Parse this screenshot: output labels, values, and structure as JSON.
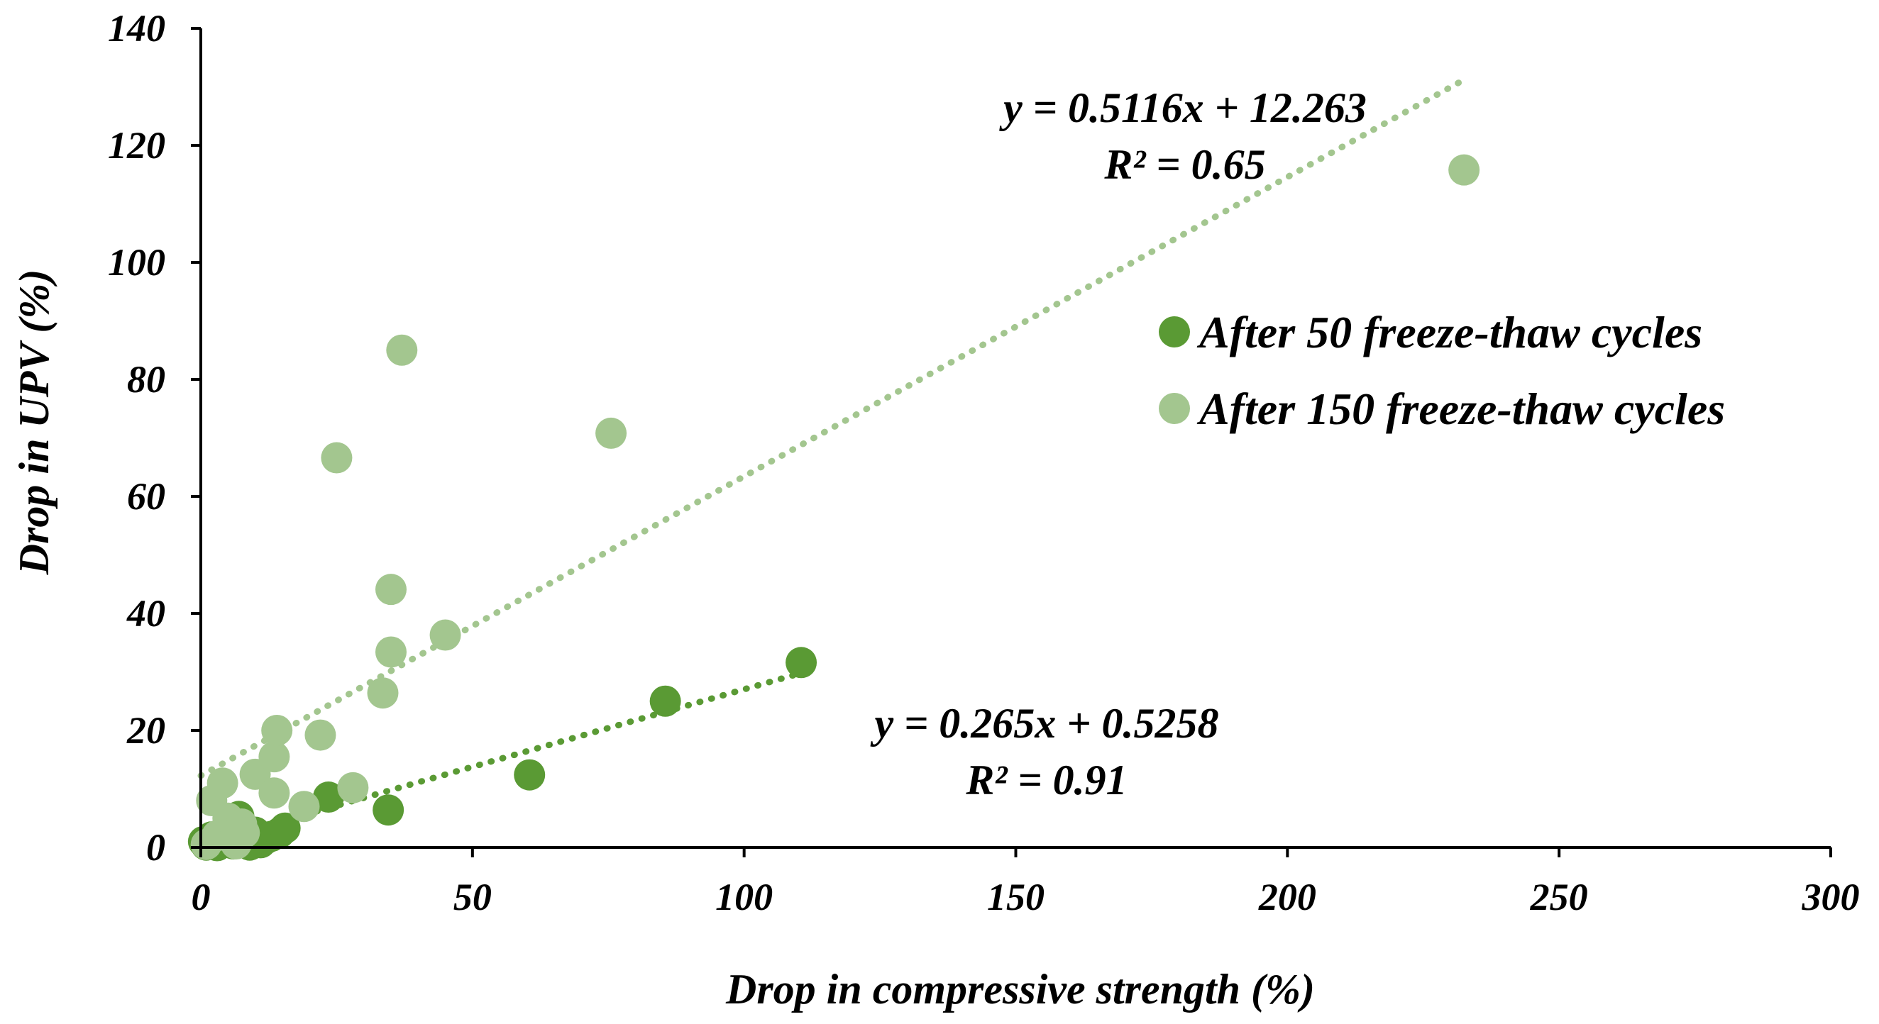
{
  "chart_data": {
    "type": "scatter",
    "title": "",
    "xlabel": "Drop in compressive strength (%)",
    "ylabel": "Drop in UPV (%)",
    "xlim": [
      0,
      300
    ],
    "ylim": [
      0,
      140
    ],
    "xticks": [
      0,
      50,
      100,
      150,
      200,
      250,
      300
    ],
    "yticks": [
      0,
      20,
      40,
      60,
      80,
      100,
      120,
      140
    ],
    "grid": false,
    "legend_position": "right",
    "series": [
      {
        "name": "After 50 freeze-thaw cycles",
        "color": "#5a9a34",
        "trendline": {
          "slope": 0.265,
          "intercept": 0.5258,
          "x_range": [
            0,
            110.5
          ],
          "equation": "y = 0.265x + 0.5258",
          "r2": "R² = 0.91"
        },
        "points": [
          [
            0.5,
            1.0
          ],
          [
            1.0,
            0.4
          ],
          [
            2.0,
            1.8
          ],
          [
            3.0,
            0.3
          ],
          [
            4.0,
            0.8
          ],
          [
            5.0,
            3.0
          ],
          [
            6.0,
            0.6
          ],
          [
            7.0,
            5.3
          ],
          [
            8.0,
            1.4
          ],
          [
            9.0,
            0.4
          ],
          [
            10.0,
            2.6
          ],
          [
            11.0,
            0.8
          ],
          [
            12.0,
            1.5
          ],
          [
            13.0,
            1.9
          ],
          [
            14.5,
            2.5
          ],
          [
            15.5,
            3.3
          ],
          [
            23.5,
            8.6
          ],
          [
            34.5,
            6.4
          ],
          [
            60.5,
            12.4
          ],
          [
            85.5,
            25.0
          ],
          [
            110.5,
            31.6
          ]
        ]
      },
      {
        "name": "After 150 freeze-thaw cycles",
        "color": "#a3c68f",
        "trendline": {
          "slope": 0.5116,
          "intercept": 12.263,
          "x_range": [
            0,
            232.5
          ],
          "equation": "y = 0.5116x + 12.263",
          "r2": "R² = 0.65"
        },
        "points": [
          [
            1.0,
            0.5
          ],
          [
            2.0,
            8.0
          ],
          [
            3.0,
            2.0
          ],
          [
            4.0,
            11.0
          ],
          [
            5.0,
            5.0
          ],
          [
            6.5,
            0.6
          ],
          [
            7.5,
            4.0
          ],
          [
            8.0,
            2.5
          ],
          [
            10.0,
            12.5
          ],
          [
            13.5,
            9.3
          ],
          [
            13.5,
            15.5
          ],
          [
            14.0,
            20.0
          ],
          [
            19.0,
            7.0
          ],
          [
            22.0,
            19.2
          ],
          [
            25.0,
            66.6
          ],
          [
            28.0,
            10.2
          ],
          [
            33.5,
            26.4
          ],
          [
            35.0,
            44.1
          ],
          [
            35.0,
            33.4
          ],
          [
            37.0,
            85.0
          ],
          [
            45.0,
            36.3
          ],
          [
            75.5,
            70.8
          ],
          [
            232.5,
            115.8
          ]
        ]
      }
    ]
  }
}
